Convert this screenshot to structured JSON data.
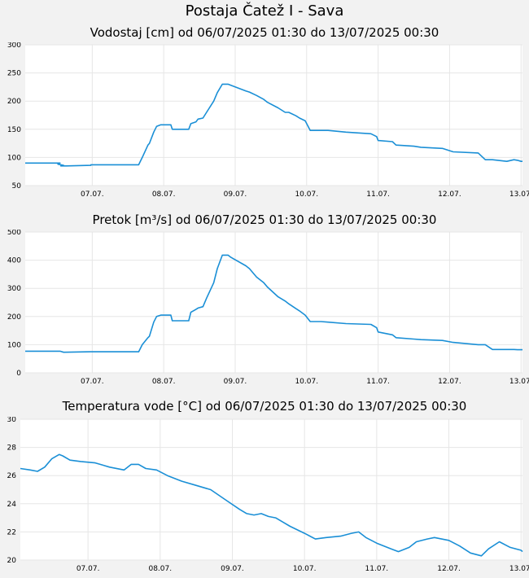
{
  "page": {
    "title": "Postaja Čatež I - Sava"
  },
  "colors": {
    "line": "#1a8fd6",
    "plot_bg": "#ffffff",
    "grid": "#e6e6e6",
    "page_bg": "#f2f2f2"
  },
  "chart_data": [
    {
      "id": "water-level",
      "type": "line",
      "title": "Vodostaj [cm] od 06/07/2025 01:30 do 13/07/2025 00:30",
      "xlabel": "",
      "ylabel": "",
      "x_tick_labels": [
        "07.07.",
        "08.07.",
        "09.07.",
        "10.07.",
        "11.07.",
        "12.07.",
        "13.07."
      ],
      "x_tick_days": [
        1,
        2,
        3,
        4,
        5,
        6,
        7
      ],
      "xlim": [
        0.0625,
        7.02
      ],
      "ylim": [
        50,
        300
      ],
      "y_ticks": [
        50,
        100,
        150,
        200,
        250,
        300
      ],
      "grid": true,
      "x": [
        0.06,
        0.55,
        0.52,
        0.6,
        0.56,
        0.64,
        0.98,
        0.98,
        1.0,
        1.65,
        1.7,
        1.78,
        1.8,
        1.86,
        1.9,
        1.96,
        2.1,
        2.12,
        2.35,
        2.38,
        2.45,
        2.48,
        2.55,
        2.6,
        2.7,
        2.75,
        2.82,
        2.9,
        2.94,
        3.15,
        3.2,
        3.3,
        3.4,
        3.45,
        3.6,
        3.7,
        3.75,
        3.85,
        3.9,
        3.98,
        4.05,
        4.2,
        4.3,
        4.55,
        4.9,
        4.98,
        5.0,
        5.2,
        5.25,
        5.5,
        5.6,
        5.9,
        6.05,
        6.4,
        6.5,
        6.6,
        6.8,
        6.9,
        6.95,
        7.0,
        7.02
      ],
      "y": [
        90,
        90,
        88,
        86,
        85,
        85,
        86,
        87,
        87,
        87,
        100,
        122,
        125,
        145,
        155,
        158,
        158,
        150,
        150,
        160,
        163,
        168,
        170,
        180,
        200,
        215,
        230,
        230,
        228,
        218,
        216,
        210,
        203,
        198,
        188,
        180,
        180,
        174,
        170,
        165,
        148,
        148,
        148,
        145,
        142,
        137,
        130,
        128,
        122,
        120,
        118,
        116,
        110,
        108,
        96,
        96,
        93,
        96,
        95,
        93,
        93
      ]
    },
    {
      "id": "discharge",
      "type": "line",
      "title": "Pretok [m³/s] od 06/07/2025 01:30 do 13/07/2025 00:30",
      "xlabel": "",
      "ylabel": "",
      "x_tick_labels": [
        "07.07.",
        "08.07.",
        "09.07.",
        "10.07.",
        "11.07.",
        "12.07.",
        "13.07."
      ],
      "x_tick_days": [
        1,
        2,
        3,
        4,
        5,
        6,
        7
      ],
      "xlim": [
        0.0625,
        7.02
      ],
      "ylim": [
        0,
        500
      ],
      "y_ticks": [
        0,
        100,
        200,
        300,
        400,
        500
      ],
      "grid": true,
      "x": [
        0.06,
        0.55,
        0.6,
        0.98,
        1.65,
        1.7,
        1.78,
        1.8,
        1.86,
        1.9,
        1.96,
        2.1,
        2.12,
        2.35,
        2.38,
        2.45,
        2.48,
        2.55,
        2.6,
        2.7,
        2.75,
        2.82,
        2.9,
        2.94,
        3.15,
        3.2,
        3.3,
        3.4,
        3.45,
        3.6,
        3.7,
        3.75,
        3.85,
        3.9,
        3.98,
        4.05,
        4.2,
        4.3,
        4.55,
        4.9,
        4.98,
        5.0,
        5.2,
        5.25,
        5.5,
        5.6,
        5.9,
        6.05,
        6.4,
        6.5,
        6.6,
        6.8,
        6.9,
        6.95,
        7.0,
        7.02
      ],
      "y": [
        77,
        77,
        73,
        75,
        75,
        100,
        125,
        130,
        180,
        200,
        205,
        205,
        185,
        185,
        215,
        225,
        230,
        235,
        265,
        320,
        370,
        418,
        418,
        410,
        380,
        370,
        340,
        320,
        305,
        270,
        255,
        245,
        228,
        220,
        205,
        182,
        182,
        180,
        175,
        172,
        160,
        145,
        135,
        125,
        120,
        118,
        115,
        108,
        100,
        100,
        83,
        83,
        83,
        82,
        82,
        82
      ]
    },
    {
      "id": "water-temperature",
      "type": "line",
      "title": "Temperatura vode [°C] od 06/07/2025 01:30 do 13/07/2025 00:30",
      "xlabel": "",
      "ylabel": "",
      "x_tick_labels": [
        "07.07.",
        "08.07.",
        "09.07.",
        "10.07.",
        "11.07.",
        "12.07.",
        "13.07."
      ],
      "x_tick_days": [
        1,
        2,
        3,
        4,
        5,
        6,
        7
      ],
      "xlim": [
        0.0625,
        7.02
      ],
      "ylim": [
        20,
        30
      ],
      "y_ticks": [
        20,
        22,
        24,
        26,
        28,
        30
      ],
      "grid": true,
      "x": [
        0.06,
        0.2,
        0.3,
        0.4,
        0.5,
        0.6,
        0.65,
        0.75,
        0.9,
        1.1,
        1.3,
        1.5,
        1.6,
        1.7,
        1.8,
        1.95,
        2.1,
        2.3,
        2.5,
        2.7,
        2.9,
        3.1,
        3.2,
        3.3,
        3.4,
        3.5,
        3.6,
        3.7,
        3.8,
        4.0,
        4.15,
        4.3,
        4.5,
        4.65,
        4.75,
        4.85,
        5.0,
        5.2,
        5.3,
        5.45,
        5.55,
        5.7,
        5.8,
        6.0,
        6.15,
        6.3,
        6.45,
        6.55,
        6.7,
        6.85,
        7.0,
        7.02
      ],
      "y": [
        26.5,
        26.4,
        26.3,
        26.6,
        27.2,
        27.5,
        27.4,
        27.1,
        27.0,
        26.9,
        26.6,
        26.4,
        26.8,
        26.8,
        26.5,
        26.4,
        26.0,
        25.6,
        25.3,
        25.0,
        24.3,
        23.6,
        23.3,
        23.2,
        23.3,
        23.1,
        23.0,
        22.7,
        22.4,
        21.9,
        21.5,
        21.6,
        21.7,
        21.9,
        22.0,
        21.6,
        21.2,
        20.8,
        20.6,
        20.9,
        21.3,
        21.5,
        21.6,
        21.4,
        21.0,
        20.5,
        20.3,
        20.8,
        21.3,
        20.9,
        20.7,
        20.6
      ]
    }
  ]
}
